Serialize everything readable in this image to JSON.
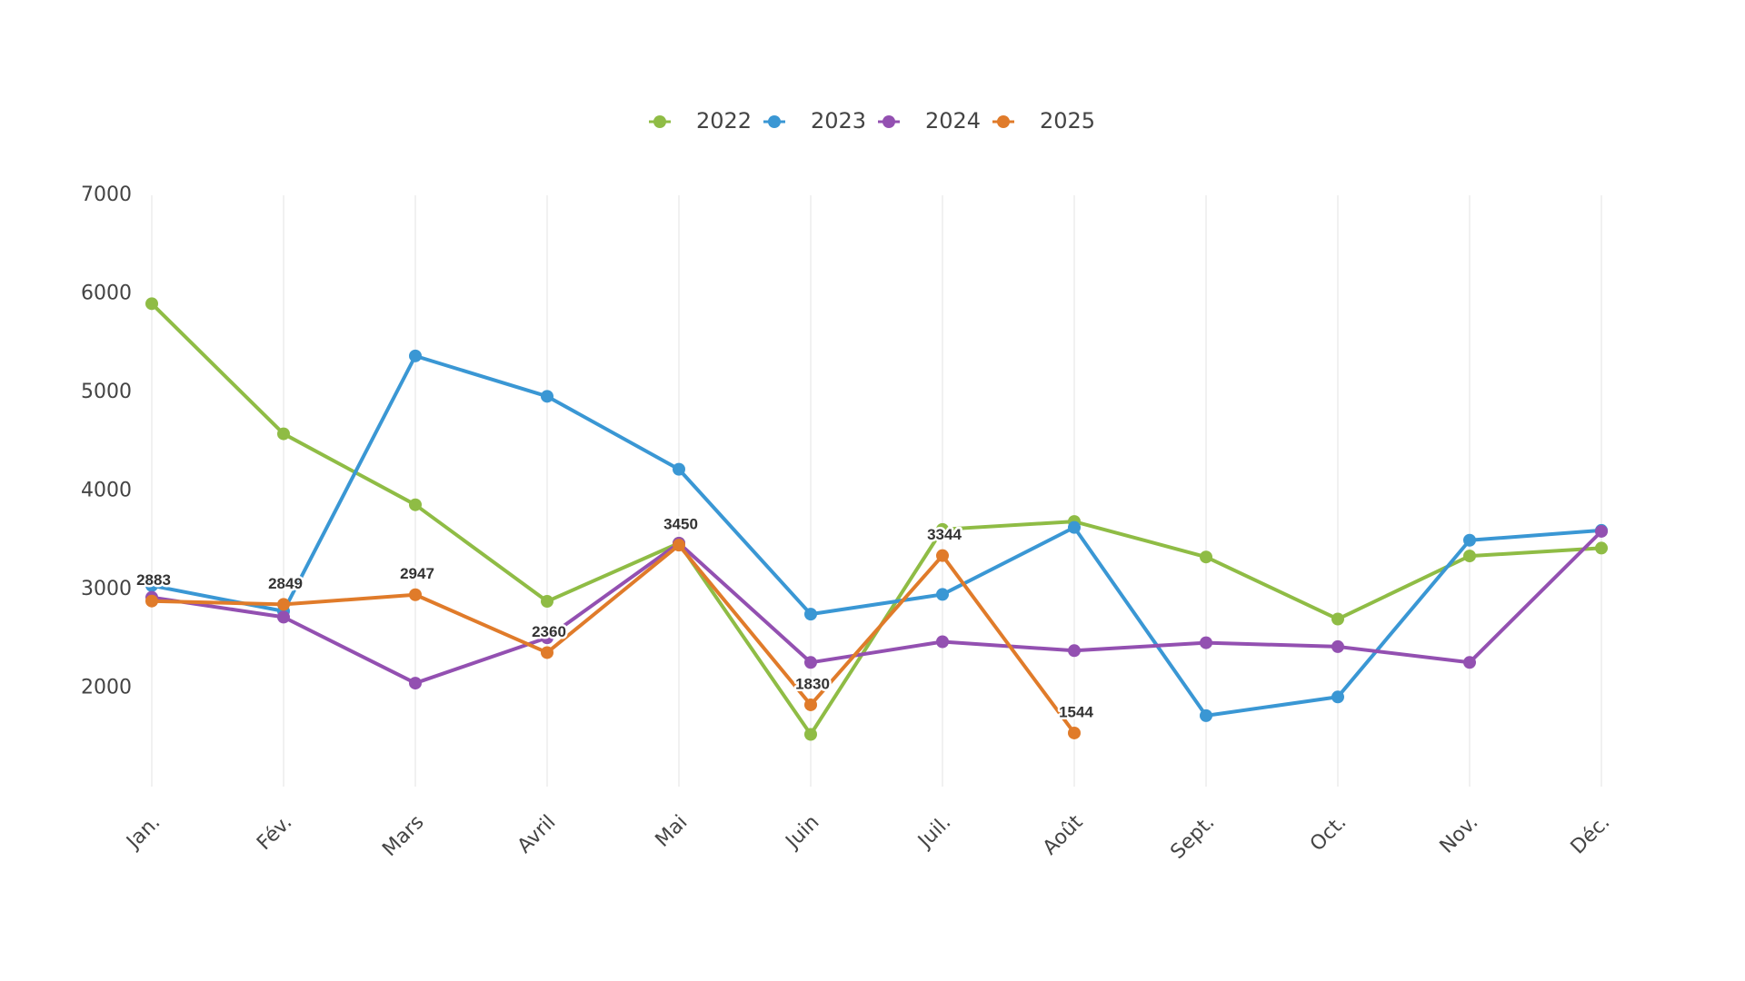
{
  "chart_data": {
    "type": "line",
    "categories": [
      "Jan.",
      "Fév.",
      "Mars",
      "Avril",
      "Mai",
      "Juin",
      "Juil.",
      "Août",
      "Sept.",
      "Oct.",
      "Nov.",
      "Déc."
    ],
    "series": [
      {
        "name": "2022",
        "color": "#8fbc45",
        "values": [
          5900,
          4580,
          3860,
          2880,
          3470,
          1530,
          3610,
          3690,
          3330,
          2700,
          3340,
          3420
        ]
      },
      {
        "name": "2023",
        "color": "#3a97d4",
        "values": [
          3040,
          2780,
          5370,
          4960,
          4220,
          2750,
          2950,
          3630,
          1720,
          1910,
          3500,
          3600
        ]
      },
      {
        "name": "2024",
        "color": "#9350b1",
        "values": [
          2920,
          2720,
          2050,
          2510,
          3470,
          2260,
          2470,
          2380,
          2460,
          2420,
          2260,
          3590
        ]
      },
      {
        "name": "2025",
        "color": "#e07b2a",
        "values": [
          2883,
          2849,
          2947,
          2360,
          3450,
          1830,
          3344,
          1544,
          null,
          null,
          null,
          null
        ],
        "data_labels": true
      }
    ],
    "ylim": [
      1000,
      7000
    ],
    "yticks": [
      2000,
      3000,
      4000,
      5000,
      6000,
      7000
    ],
    "grid": "x",
    "legend": "top"
  }
}
